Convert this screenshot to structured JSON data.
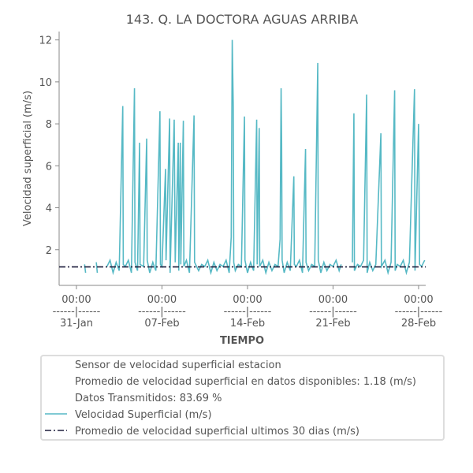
{
  "chart_data": {
    "type": "line",
    "title": "143. Q. LA DOCTORA AGUAS ARRIBA",
    "xlabel": "TIEMPO",
    "ylabel": "Velocidad superficial (m/s)",
    "xlim": [
      "29-Jan 14:00",
      "28-Feb 14:00"
    ],
    "ylim": [
      0.3,
      12.4
    ],
    "yticks": [
      2,
      4,
      6,
      8,
      10,
      12
    ],
    "xticks": [
      {
        "value": "31-Jan 00:00",
        "label": "00:00\n------|------\n31-Jan"
      },
      {
        "value": "07-Feb 00:00",
        "label": "00:00\n------|------\n07-Feb"
      },
      {
        "value": "14-Feb 00:00",
        "label": "00:00\n------|------\n14-Feb"
      },
      {
        "value": "21-Feb 00:00",
        "label": "00:00\n------|------\n21-Feb"
      },
      {
        "value": "28-Feb 00:00",
        "label": "00:00\n------|------\n28-Feb"
      }
    ],
    "legend_notes": [
      "Sensor de velocidad superficial estacion",
      "Promedio de velocidad superficial en datos disponibles: 1.18 (m/s)",
      "Datos Transmitidos: 83.69 %"
    ],
    "series": [
      {
        "name": "Velocidad Superficial (m/s)",
        "color": "#56b9c5",
        "style": "solid",
        "x": [
          "31-Jan 16:00",
          "31-Jan 18:00",
          "01-Feb 00:00",
          "01-Feb 15:00",
          "01-Feb 17:00",
          "02-Feb 00:00",
          "02-Feb 12:00",
          "02-Feb 18:00",
          "03-Feb 00:00",
          "03-Feb 06:00",
          "03-Feb 12:00",
          "03-Feb 19:00",
          "03-Feb 20:00",
          "04-Feb 00:00",
          "04-Feb 06:00",
          "04-Feb 12:00",
          "04-Feb 18:00",
          "04-Feb 19:00",
          "05-Feb 00:00",
          "05-Feb 04:00",
          "05-Feb 05:00",
          "05-Feb 12:00",
          "05-Feb 18:00",
          "05-Feb 19:00",
          "06-Feb 00:00",
          "06-Feb 06:00",
          "06-Feb 12:00",
          "06-Feb 20:00",
          "06-Feb 21:00",
          "07-Feb 00:00",
          "07-Feb 07:00",
          "07-Feb 08:00",
          "07-Feb 15:00",
          "07-Feb 16:00",
          "08-Feb 00:00",
          "08-Feb 02:00",
          "08-Feb 08:00",
          "08-Feb 09:00",
          "08-Feb 12:00",
          "08-Feb 13:00",
          "08-Feb 18:00",
          "08-Feb 19:00",
          "09-Feb 00:00",
          "09-Feb 06:00",
          "09-Feb 15:00",
          "09-Feb 16:00",
          "10-Feb 00:00",
          "10-Feb 06:00",
          "10-Feb 12:00",
          "10-Feb 18:00",
          "11-Feb 00:00",
          "11-Feb 06:00",
          "11-Feb 12:00",
          "11-Feb 18:00",
          "12-Feb 00:00",
          "12-Feb 06:00",
          "12-Feb 12:00",
          "12-Feb 16:00",
          "12-Feb 18:00",
          "12-Feb 20:00",
          "12-Feb 21:00",
          "13-Feb 00:00",
          "13-Feb 06:00",
          "13-Feb 12:00",
          "13-Feb 18:00",
          "13-Feb 19:00",
          "14-Feb 00:00",
          "14-Feb 06:00",
          "14-Feb 12:00",
          "14-Feb 18:00",
          "14-Feb 19:00",
          "14-Feb 23:00",
          "15-Feb 00:00",
          "15-Feb 06:00",
          "15-Feb 12:00",
          "15-Feb 18:00",
          "16-Feb 00:00",
          "16-Feb 06:00",
          "16-Feb 12:00",
          "16-Feb 16:00",
          "16-Feb 18:00",
          "16-Feb 19:00",
          "16-Feb 20:00",
          "17-Feb 00:00",
          "17-Feb 06:00",
          "17-Feb 12:00",
          "17-Feb 19:00",
          "17-Feb 20:00",
          "18-Feb 00:00",
          "18-Feb 06:00",
          "18-Feb 12:00",
          "18-Feb 18:00",
          "18-Feb 19:00",
          "19-Feb 00:00",
          "19-Feb 06:00",
          "19-Feb 12:00",
          "19-Feb 18:00",
          "19-Feb 19:00",
          "20-Feb 00:00",
          "20-Feb 06:00",
          "20-Feb 12:00",
          "20-Feb 18:00",
          "21-Feb 00:00",
          "21-Feb 06:00",
          "21-Feb 12:00",
          "21-Feb 16:00",
          "22-Feb 00:00",
          "22-Feb 14:00",
          "22-Feb 17:00",
          "22-Feb 18:00",
          "23-Feb 00:00",
          "23-Feb 06:00",
          "23-Feb 12:00",
          "23-Feb 18:00",
          "23-Feb 19:00",
          "24-Feb 00:00",
          "24-Feb 06:00",
          "24-Feb 12:00",
          "24-Feb 22:00",
          "24-Feb 23:00",
          "25-Feb 06:00",
          "25-Feb 12:00",
          "25-Feb 18:00",
          "26-Feb 01:00",
          "26-Feb 02:00",
          "26-Feb 06:00",
          "26-Feb 12:00",
          "26-Feb 18:00",
          "27-Feb 00:00",
          "27-Feb 06:00",
          "27-Feb 16:00",
          "27-Feb 17:00",
          "28-Feb 00:00",
          "28-Feb 02:00",
          "28-Feb 06:00",
          "28-Feb 12:00"
        ],
        "values": [
          1.3,
          0.9,
          null,
          1.4,
          0.9,
          null,
          1.2,
          1.5,
          0.9,
          1.4,
          1.0,
          8.85,
          1.3,
          1.2,
          1.5,
          0.9,
          9.7,
          1.4,
          1.0,
          7.1,
          1.3,
          1.2,
          7.3,
          1.5,
          0.9,
          1.4,
          1.0,
          8.6,
          1.3,
          1.2,
          5.85,
          1.5,
          8.25,
          0.9,
          8.2,
          1.4,
          7.1,
          1.0,
          7.1,
          1.3,
          8.15,
          1.2,
          1.5,
          0.9,
          8.4,
          1.4,
          1.0,
          1.3,
          1.2,
          1.5,
          0.9,
          1.4,
          1.0,
          1.3,
          1.2,
          1.5,
          0.9,
          2.6,
          12.0,
          8.8,
          1.4,
          1.0,
          1.3,
          1.2,
          8.35,
          1.5,
          0.9,
          1.4,
          1.0,
          8.2,
          1.3,
          7.8,
          1.2,
          1.5,
          0.9,
          1.4,
          1.0,
          1.3,
          1.2,
          2.5,
          9.7,
          7.1,
          1.5,
          0.9,
          1.4,
          1.0,
          5.5,
          1.3,
          1.2,
          1.5,
          0.9,
          6.8,
          1.4,
          1.0,
          1.3,
          1.2,
          10.9,
          1.5,
          0.9,
          1.4,
          1.0,
          1.3,
          1.2,
          1.5,
          1.0,
          1.3,
          null,
          1.4,
          8.5,
          1.0,
          1.3,
          1.2,
          1.5,
          9.4,
          0.9,
          1.4,
          1.0,
          1.3,
          7.55,
          1.2,
          1.5,
          0.9,
          1.4,
          9.6,
          1.0,
          1.3,
          1.2,
          1.5,
          0.9,
          1.4,
          9.65,
          1.0,
          8.0,
          1.3,
          1.2,
          1.5
        ]
      },
      {
        "name": "Promedio de velocidad superficial ultimos 30 dias (m/s)",
        "color": "#1f1f3d",
        "style": "dashdot",
        "x": [
          "29-Jan 14:00",
          "28-Feb 14:00"
        ],
        "values": [
          1.18,
          1.18
        ]
      }
    ]
  }
}
